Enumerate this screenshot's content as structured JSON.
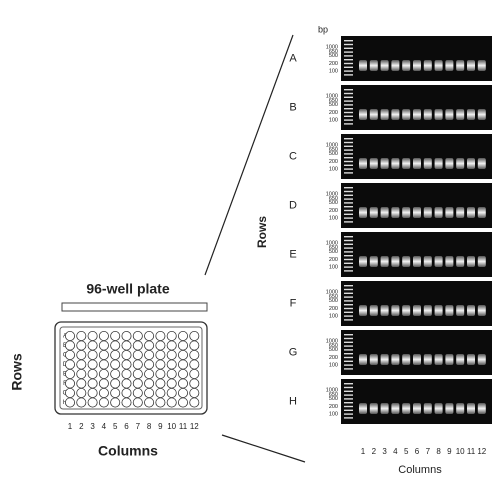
{
  "plate": {
    "title": "96-well plate",
    "row_axis": "Rows",
    "column_axis": "Columns",
    "rows": [
      "A",
      "B",
      "C",
      "D",
      "E",
      "F",
      "G",
      "H"
    ],
    "columns": [
      "1",
      "2",
      "3",
      "4",
      "5",
      "6",
      "7",
      "8",
      "9",
      "10",
      "11",
      "12"
    ]
  },
  "gel": {
    "unit": "bp",
    "ladder": [
      "1000",
      "650",
      "500",
      "200",
      "100"
    ],
    "row_axis": "Rows",
    "column_axis": "Columns",
    "rows": [
      "A",
      "B",
      "C",
      "D",
      "E",
      "F",
      "G",
      "H"
    ],
    "columns": [
      "1",
      "2",
      "3",
      "4",
      "5",
      "6",
      "7",
      "8",
      "9",
      "10",
      "11",
      "12"
    ]
  }
}
